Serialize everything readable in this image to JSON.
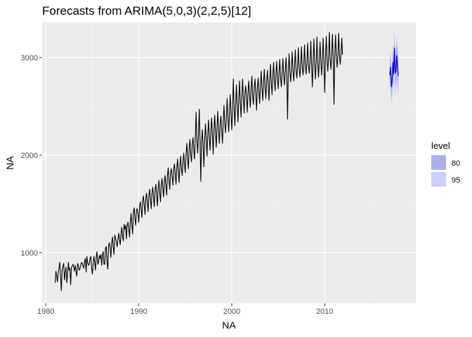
{
  "chart_data": {
    "type": "line",
    "title": "Forecasts from ARIMA(5,0,3)(2,2,5)[12]",
    "xlabel": "NA",
    "ylabel": "NA",
    "xlim": [
      1979.6,
      2019.8
    ],
    "ylim": [
      480,
      3360
    ],
    "x_ticks": [
      1980,
      1990,
      2000,
      2010
    ],
    "y_ticks": [
      1000,
      2000,
      3000
    ],
    "x_tick_labels": [
      "1980",
      "1990",
      "2000",
      "2010"
    ],
    "y_tick_labels": [
      "1000",
      "2000",
      "3000"
    ],
    "grid": true,
    "legend_position": "right",
    "legend": {
      "title": "level",
      "items": [
        {
          "label": "80",
          "color": "#abb0ec"
        },
        {
          "label": "95",
          "color": "#cdd0f7"
        }
      ]
    },
    "series": [
      {
        "role": "observed",
        "color": "#000000",
        "start": 1981.0,
        "frequency": 12,
        "values": [
          690,
          810,
          760,
          700,
          790,
          840,
          900,
          760,
          610,
          820,
          860,
          890,
          720,
          800,
          850,
          690,
          770,
          900,
          820,
          840,
          670,
          850,
          860,
          880,
          850,
          810,
          870,
          800,
          760,
          890,
          870,
          820,
          830,
          870,
          900,
          890,
          860,
          840,
          910,
          940,
          800,
          960,
          900,
          870,
          880,
          940,
          960,
          850,
          780,
          880,
          960,
          900,
          820,
          960,
          1010,
          880,
          900,
          970,
          940,
          980,
          870,
          980,
          1010,
          880,
          880,
          1050,
          1060,
          900,
          830,
          1080,
          1100,
          1050,
          950,
          1100,
          1160,
          1060,
          980,
          1180,
          1150,
          1110,
          1060,
          1130,
          1200,
          1140,
          1080,
          1190,
          1260,
          1160,
          1120,
          1290,
          1240,
          1280,
          1140,
          1280,
          1310,
          1250,
          1160,
          1310,
          1400,
          1290,
          1190,
          1420,
          1460,
          1350,
          1280,
          1440,
          1450,
          1400,
          1310,
          1480,
          1520,
          1440,
          1360,
          1540,
          1580,
          1480,
          1390,
          1560,
          1610,
          1510,
          1420,
          1590,
          1650,
          1540,
          1450,
          1610,
          1670,
          1570,
          1470,
          1640,
          1700,
          1590,
          1480,
          1660,
          1740,
          1620,
          1520,
          1700,
          1760,
          1660,
          1570,
          1730,
          1790,
          1680,
          1590,
          1790,
          1870,
          1740,
          1650,
          1820,
          1860,
          1780,
          1690,
          1850,
          1910,
          1800,
          1700,
          1870,
          1960,
          1830,
          1720,
          1890,
          1990,
          1860,
          1790,
          1920,
          2020,
          1900,
          1820,
          2010,
          2120,
          1970,
          1860,
          2070,
          2160,
          2010,
          1930,
          2110,
          2180,
          2050,
          1960,
          2190,
          2440,
          2160,
          2020,
          2200,
          2470,
          2150,
          1730,
          2130,
          2260,
          2100,
          1880,
          2150,
          2320,
          2160,
          1990,
          2210,
          2360,
          2180,
          2050,
          2240,
          2380,
          2210,
          2010,
          2260,
          2410,
          2230,
          2080,
          2290,
          2450,
          2250,
          2120,
          2310,
          2400,
          2260,
          2120,
          2340,
          2510,
          2320,
          2230,
          2390,
          2580,
          2380,
          2240,
          2440,
          2620,
          2430,
          2260,
          2480,
          2780,
          2490,
          2300,
          2520,
          2720,
          2510,
          2340,
          2560,
          2760,
          2540,
          2390,
          2600,
          2780,
          2580,
          2430,
          2630,
          2710,
          2600,
          2440,
          2640,
          2760,
          2610,
          2490,
          2680,
          2810,
          2600,
          2520,
          2700,
          2780,
          2630,
          2460,
          2690,
          2790,
          2650,
          2530,
          2720,
          2860,
          2680,
          2560,
          2740,
          2880,
          2700,
          2580,
          2750,
          2870,
          2730,
          2560,
          2760,
          2930,
          2740,
          2620,
          2800,
          2950,
          2770,
          2660,
          2820,
          2960,
          2790,
          2680,
          2840,
          2980,
          2800,
          2700,
          2850,
          2990,
          2820,
          2720,
          2860,
          3000,
          2830,
          2370,
          2860,
          3040,
          2850,
          2750,
          2880,
          3060,
          2870,
          2760,
          2900,
          3080,
          2880,
          2790,
          2910,
          3100,
          2890,
          2800,
          2920,
          3110,
          2900,
          2820,
          2930,
          3130,
          2910,
          2830,
          2940,
          3150,
          2920,
          2840,
          2950,
          3170,
          2930,
          2700,
          2960,
          3190,
          2940,
          2780,
          2960,
          3210,
          2950,
          2800,
          2970,
          3160,
          2960,
          2820,
          2980,
          3200,
          2970,
          2640,
          2990,
          3220,
          2980,
          2860,
          3000,
          3260,
          2990,
          2880,
          3010,
          3240,
          3000,
          2520,
          3010,
          3230,
          3010,
          2900,
          3020,
          3250,
          3020,
          2930,
          3030,
          3200,
          3030
        ]
      },
      {
        "role": "forecast",
        "color": "#0000cc",
        "start": 2017.0,
        "frequency": 12,
        "values": [
          2820,
          2900,
          2700,
          2750,
          2950,
          2830,
          3100,
          2840,
          2860,
          3020,
          2900,
          2810
        ],
        "lower80": [
          2700,
          2780,
          2580,
          2620,
          2820,
          2700,
          2960,
          2700,
          2710,
          2870,
          2750,
          2650
        ],
        "upper80": [
          2940,
          3020,
          2820,
          2880,
          3080,
          2960,
          3240,
          2980,
          3010,
          3170,
          3050,
          2970
        ],
        "lower95": [
          2630,
          2710,
          2510,
          2550,
          2750,
          2620,
          2880,
          2620,
          2620,
          2790,
          2660,
          2560
        ],
        "upper95": [
          3010,
          3090,
          2890,
          2950,
          3150,
          3040,
          3320,
          3060,
          3100,
          3250,
          3140,
          3060
        ]
      }
    ]
  }
}
